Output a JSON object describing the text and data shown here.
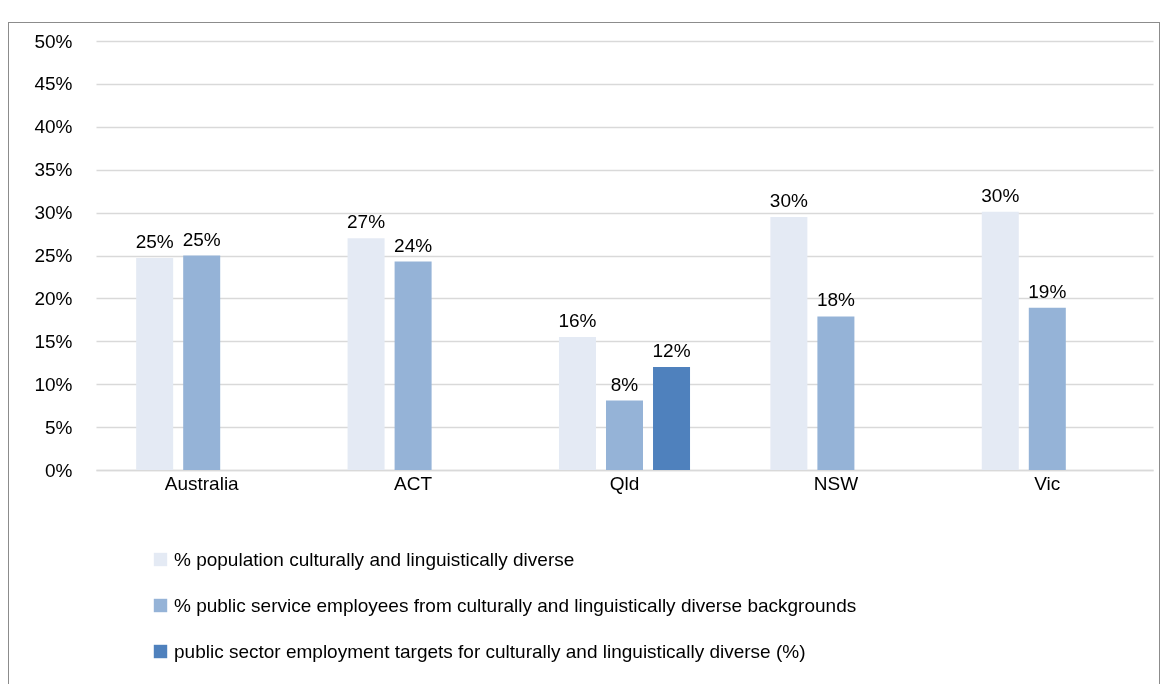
{
  "chart_data": {
    "type": "bar",
    "categories": [
      "Australia",
      "ACT",
      "Qld",
      "NSW",
      "Vic"
    ],
    "series": [
      {
        "name": "% population culturally and linguistically diverse",
        "color": "#e4eaf4",
        "values": [
          24.7,
          27.0,
          15.5,
          29.5,
          30.1
        ],
        "value_labels": [
          "25%",
          "27%",
          "16%",
          "30%",
          "30%"
        ]
      },
      {
        "name": "% public service employees from culturally and linguistically diverse backgrounds",
        "color": "#95b3d7",
        "values": [
          25.0,
          24.3,
          8.1,
          17.9,
          18.9
        ],
        "value_labels": [
          "25%",
          "24%",
          "8%",
          "18%",
          "19%"
        ]
      },
      {
        "name": "public sector employment targets for culturally and linguistically diverse (%)",
        "color": "#4f81bd",
        "values": [
          null,
          null,
          12,
          null,
          null
        ],
        "value_labels": [
          null,
          null,
          "12%",
          null,
          null
        ]
      }
    ],
    "ylim": [
      0,
      50
    ],
    "yticks": [
      {
        "value": 0,
        "label": "0%"
      },
      {
        "value": 5,
        "label": "5%"
      },
      {
        "value": 10,
        "label": "10%"
      },
      {
        "value": 15,
        "label": "15%"
      },
      {
        "value": 20,
        "label": "20%"
      },
      {
        "value": 25,
        "label": "25%"
      },
      {
        "value": 30,
        "label": "30%"
      },
      {
        "value": 35,
        "label": "35%"
      },
      {
        "value": 40,
        "label": "40%"
      },
      {
        "value": 45,
        "label": "45%"
      },
      {
        "value": 50,
        "label": "50%"
      }
    ],
    "grid": "y",
    "legend": "bottom"
  }
}
